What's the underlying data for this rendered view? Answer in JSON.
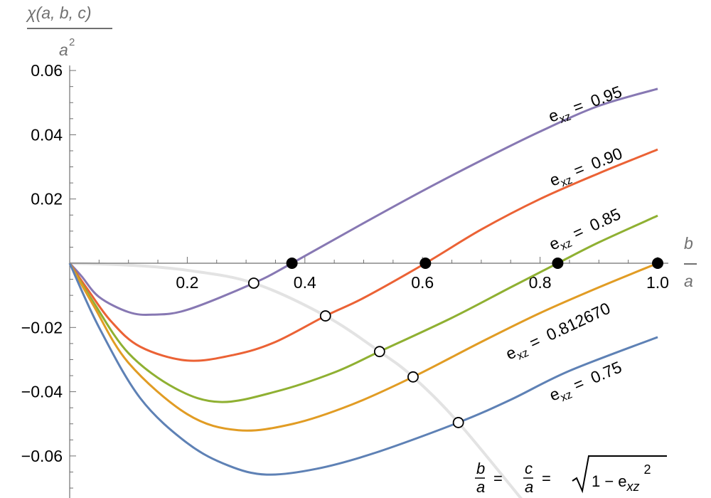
{
  "chart_data": {
    "type": "line",
    "title": "",
    "ylabel": {
      "numerator": "χ(a, b, c)",
      "denominator": "a",
      "denominator_exponent": "2"
    },
    "xlabel": {
      "numerator": "b",
      "denominator": "a"
    },
    "xlim": [
      0,
      1.0
    ],
    "ylim": [
      -0.073,
      0.061
    ],
    "x_ticks": [
      0.2,
      0.4,
      0.6,
      0.8,
      1.0
    ],
    "x_tick_labels": [
      "0.2",
      "0.4",
      "0.6",
      "0.8",
      "1.0"
    ],
    "y_ticks": [
      0.06,
      0.04,
      0.02,
      -0.02,
      -0.04,
      -0.06
    ],
    "y_tick_labels": [
      "0.06",
      "0.04",
      "0.02",
      "−0.02",
      "−0.04",
      "−0.06"
    ],
    "grid": false,
    "series": [
      {
        "name": "e_xz = 0.95",
        "label_prefix": "e",
        "label_sub": "xz",
        "label_value": "=  0.95",
        "color": "#8778B3",
        "x": [
          0,
          0.02,
          0.05,
          0.1,
          0.141,
          0.2,
          0.313,
          0.378,
          0.5,
          0.6,
          0.7,
          0.8,
          0.9,
          1.0
        ],
        "y": [
          0,
          -0.004,
          -0.0105,
          -0.0152,
          -0.016,
          -0.0145,
          -0.0062,
          0,
          0.0125,
          0.0225,
          0.032,
          0.041,
          0.049,
          0.0543
        ]
      },
      {
        "name": "e_xz = 0.90",
        "label_prefix": "e",
        "label_sub": "xz",
        "label_value": "=  0.90",
        "color": "#EB6235",
        "x": [
          0,
          0.03,
          0.07,
          0.12,
          0.2,
          0.28,
          0.35,
          0.435,
          0.5,
          0.605,
          0.7,
          0.8,
          0.9,
          1.0
        ],
        "y": [
          0,
          -0.008,
          -0.018,
          -0.026,
          -0.0303,
          -0.0285,
          -0.0245,
          -0.0164,
          -0.0108,
          0,
          0.0105,
          0.02,
          0.028,
          0.0354
        ]
      },
      {
        "name": "e_xz = 0.85",
        "label_prefix": "e",
        "label_sub": "xz",
        "label_value": "=  0.85",
        "color": "#8FB032",
        "x": [
          0,
          0.04,
          0.1,
          0.18,
          0.256,
          0.35,
          0.45,
          0.527,
          0.65,
          0.75,
          0.83,
          0.9,
          1.0
        ],
        "y": [
          0,
          -0.012,
          -0.028,
          -0.039,
          -0.0432,
          -0.04,
          -0.034,
          -0.0275,
          -0.017,
          -0.0075,
          0,
          0.0065,
          0.0148
        ]
      },
      {
        "name": "e_xz = 0.812670",
        "label_prefix": "e",
        "label_sub": "xz",
        "label_value": "=  0.812670",
        "color": "#E19C24",
        "x": [
          0,
          0.04,
          0.1,
          0.2,
          0.287,
          0.38,
          0.48,
          0.584,
          0.7,
          0.8,
          0.9,
          1.0
        ],
        "y": [
          0,
          -0.013,
          -0.031,
          -0.047,
          -0.052,
          -0.05,
          -0.044,
          -0.0354,
          -0.0245,
          -0.0155,
          -0.0075,
          0
        ]
      },
      {
        "name": "e_xz = 0.75",
        "label_prefix": "e",
        "label_sub": "xz",
        "label_value": "=  0.75",
        "color": "#5E81B5",
        "x": [
          0,
          0.05,
          0.12,
          0.2,
          0.27,
          0.335,
          0.42,
          0.52,
          0.661,
          0.75,
          0.85,
          1.0
        ],
        "y": [
          0,
          -0.02,
          -0.042,
          -0.056,
          -0.063,
          -0.0658,
          -0.064,
          -0.059,
          -0.0496,
          -0.0425,
          -0.0335,
          -0.023
        ]
      }
    ],
    "locus": {
      "name": "b/a = c/a = sqrt(1 - e_xz^2)",
      "color": "#E3E3E3",
      "x": [
        0,
        0.1,
        0.2,
        0.313,
        0.435,
        0.527,
        0.584,
        0.661,
        0.78
      ],
      "y": [
        0,
        -0.0006,
        -0.0022,
        -0.0062,
        -0.0164,
        -0.0275,
        -0.0354,
        -0.0496,
        -0.076
      ],
      "formula": {
        "b": "b",
        "a": "a",
        "c": "c",
        "eq": "=",
        "one_minus": "1 − e",
        "sub": "xz",
        "exp": "2"
      }
    },
    "open_points": {
      "x": [
        0.313,
        0.435,
        0.527,
        0.584,
        0.661
      ],
      "y": [
        -0.0062,
        -0.0164,
        -0.0275,
        -0.0354,
        -0.0496
      ]
    },
    "zero_crossings": {
      "x": [
        0.378,
        0.605,
        0.83,
        1.0
      ],
      "y": [
        0,
        0,
        0,
        0
      ]
    }
  }
}
